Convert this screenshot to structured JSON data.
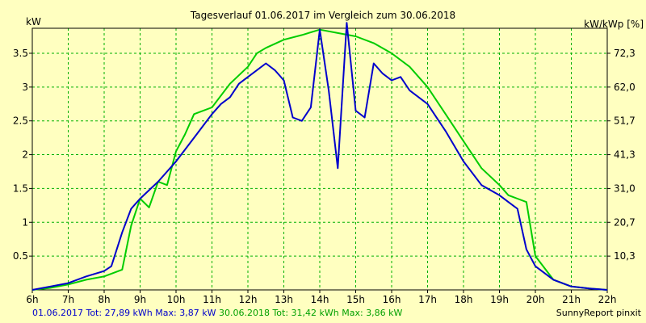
{
  "chart_data": {
    "type": "line",
    "title": "Tagesverlauf 01.06.2017 im Vergleich zum 30.06.2018",
    "ylabel_left": "kW",
    "ylabel_right": "kW/kWp [%]",
    "x_ticks": [
      "6h",
      "7h",
      "8h",
      "9h",
      "10h",
      "11h",
      "12h",
      "13h",
      "14h",
      "15h",
      "16h",
      "17h",
      "18h",
      "19h",
      "20h",
      "21h",
      "22h"
    ],
    "xlim": [
      6,
      22
    ],
    "ylim": [
      0,
      3.87
    ],
    "y_ticks": [
      0.5,
      1,
      1.5,
      2,
      2.5,
      3,
      3.5
    ],
    "y_ticks_right": [
      "10,3",
      "20,7",
      "31,0",
      "41,3",
      "51,7",
      "62,0",
      "72,3"
    ],
    "grid": true,
    "series": [
      {
        "name": "01.06.2017",
        "color": "#0000cc",
        "x": [
          6.0,
          6.5,
          7.0,
          7.5,
          8.0,
          8.2,
          8.5,
          8.75,
          9.0,
          9.5,
          10.0,
          10.5,
          11.0,
          11.25,
          11.5,
          11.75,
          12.0,
          12.5,
          12.75,
          13.0,
          13.25,
          13.5,
          13.75,
          14.0,
          14.25,
          14.5,
          14.75,
          15.0,
          15.25,
          15.5,
          15.75,
          16.0,
          16.25,
          16.5,
          17.0,
          17.5,
          18.0,
          18.5,
          19.0,
          19.25,
          19.5,
          19.75,
          20.0,
          20.5,
          21.0,
          21.5,
          22.0
        ],
        "values": [
          0.0,
          0.05,
          0.1,
          0.2,
          0.28,
          0.35,
          0.85,
          1.2,
          1.35,
          1.6,
          1.9,
          2.25,
          2.6,
          2.75,
          2.85,
          3.05,
          3.15,
          3.35,
          3.25,
          3.1,
          2.55,
          2.5,
          2.7,
          3.85,
          2.95,
          1.8,
          3.95,
          2.65,
          2.55,
          3.35,
          3.2,
          3.1,
          3.15,
          2.95,
          2.75,
          2.35,
          1.9,
          1.55,
          1.4,
          1.3,
          1.2,
          0.6,
          0.35,
          0.15,
          0.05,
          0.02,
          0.0
        ]
      },
      {
        "name": "30.06.2018",
        "color": "#00cc00",
        "x": [
          6.0,
          6.5,
          7.0,
          7.5,
          8.0,
          8.5,
          8.75,
          9.0,
          9.25,
          9.5,
          9.75,
          10.0,
          10.25,
          10.5,
          11.0,
          11.5,
          12.0,
          12.25,
          12.5,
          13.0,
          13.5,
          14.0,
          14.5,
          15.0,
          15.5,
          16.0,
          16.5,
          17.0,
          17.5,
          18.0,
          18.5,
          19.0,
          19.25,
          19.5,
          19.75,
          20.0,
          20.5,
          21.0,
          21.5,
          22.0
        ],
        "values": [
          0.0,
          0.03,
          0.08,
          0.15,
          0.2,
          0.3,
          0.95,
          1.35,
          1.22,
          1.6,
          1.55,
          2.05,
          2.3,
          2.6,
          2.7,
          3.05,
          3.3,
          3.5,
          3.58,
          3.7,
          3.77,
          3.85,
          3.8,
          3.75,
          3.65,
          3.5,
          3.3,
          3.0,
          2.6,
          2.2,
          1.8,
          1.55,
          1.4,
          1.35,
          1.3,
          0.5,
          0.15,
          0.05,
          0.02,
          0.0
        ]
      }
    ]
  },
  "footer": {
    "series1_text": "01.06.2017 Tot: 27,89 kWh Max: 3,87 kW",
    "series2_text": "30.06.2018 Tot: 31,42 kWh Max: 3,86 kW",
    "brand": "SunnyReport pinxit"
  },
  "colors": {
    "background": "#ffffc0",
    "grid": "#00b000",
    "axis": "#000000"
  }
}
